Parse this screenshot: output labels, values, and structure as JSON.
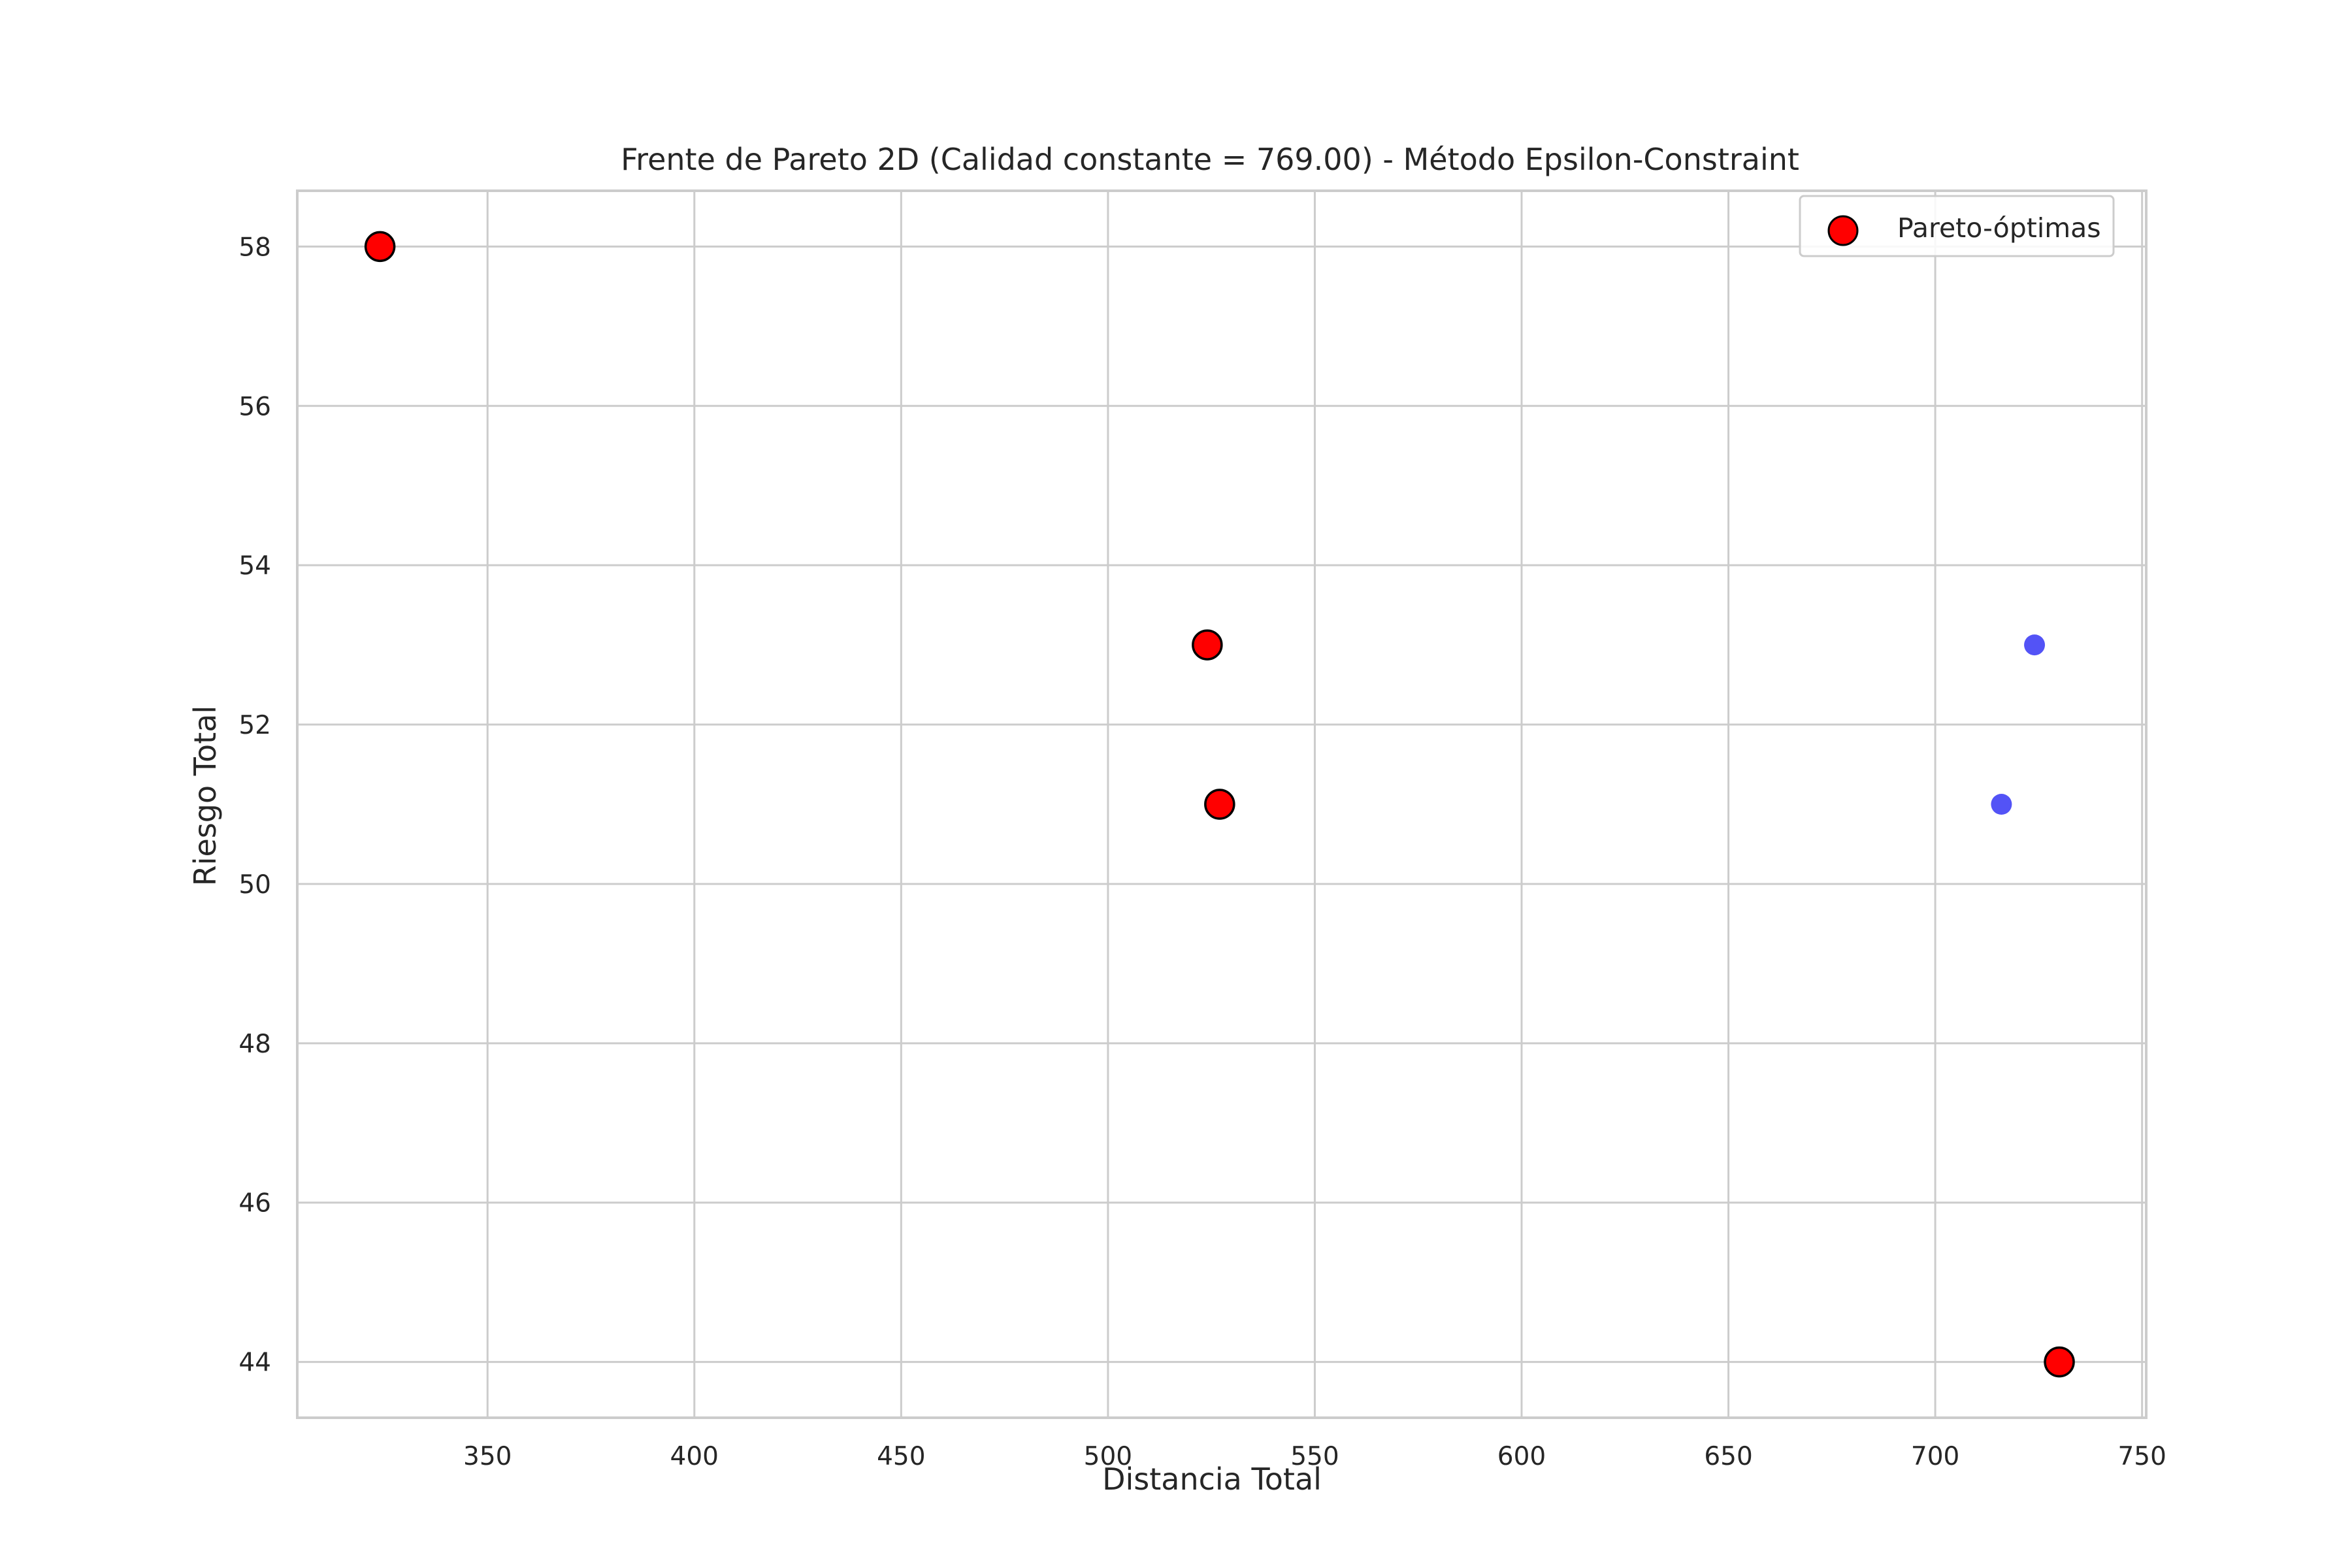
{
  "chart_data": {
    "type": "scatter",
    "title": "Frente de Pareto 2D (Calidad constante = 769.00) - Método Epsilon-Constraint",
    "xlabel": "Distancia Total",
    "ylabel": "Riesgo Total",
    "xlim": [
      304,
      751
    ],
    "ylim": [
      43.3,
      58.7
    ],
    "xticks": [
      350,
      400,
      450,
      500,
      550,
      600,
      650,
      700,
      750
    ],
    "yticks": [
      44,
      46,
      48,
      50,
      52,
      54,
      56,
      58
    ],
    "grid": true,
    "legend_position": "top-right",
    "series": [
      {
        "name": "Pareto-óptimas",
        "color": "#ff0000",
        "edge_color": "#000000",
        "points": [
          {
            "x": 324,
            "y": 58
          },
          {
            "x": 524,
            "y": 53
          },
          {
            "x": 527,
            "y": 51
          },
          {
            "x": 730,
            "y": 44
          }
        ]
      },
      {
        "color": "#4a4af5",
        "points": [
          {
            "x": 724,
            "y": 53
          },
          {
            "x": 716,
            "y": 51
          }
        ]
      }
    ]
  }
}
